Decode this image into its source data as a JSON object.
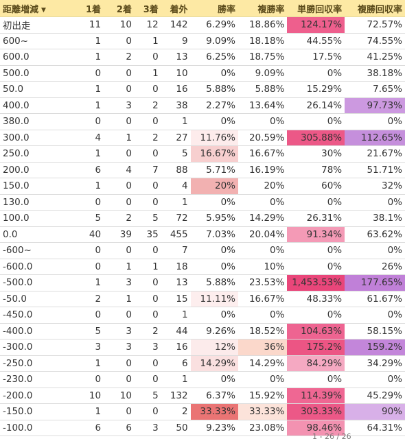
{
  "table": {
    "headers": [
      {
        "label": "距離増減",
        "sort_icon": "caret-down-icon"
      },
      {
        "label": "1着"
      },
      {
        "label": "2着"
      },
      {
        "label": "3着"
      },
      {
        "label": "着外"
      },
      {
        "label": "勝率"
      },
      {
        "label": "複勝率"
      },
      {
        "label": "単勝回収率"
      },
      {
        "label": "複勝回収率"
      }
    ],
    "rows": [
      {
        "cells": [
          "初出走",
          "11",
          "10",
          "12",
          "142",
          "6.29%",
          "18.86%",
          "124.17%",
          "72.57%"
        ],
        "bg": [
          null,
          null,
          null,
          null,
          null,
          null,
          null,
          "#ee5f8d",
          null
        ]
      },
      {
        "cells": [
          "600~",
          "1",
          "0",
          "1",
          "9",
          "9.09%",
          "18.18%",
          "44.55%",
          "74.55%"
        ],
        "bg": [
          null,
          null,
          null,
          null,
          null,
          null,
          null,
          null,
          null
        ]
      },
      {
        "cells": [
          "600.0",
          "1",
          "2",
          "0",
          "13",
          "6.25%",
          "18.75%",
          "17.5%",
          "41.25%"
        ],
        "bg": [
          null,
          null,
          null,
          null,
          null,
          null,
          null,
          null,
          null
        ]
      },
      {
        "cells": [
          "500.0",
          "0",
          "0",
          "1",
          "10",
          "0%",
          "9.09%",
          "0%",
          "38.18%"
        ],
        "bg": [
          null,
          null,
          null,
          null,
          null,
          null,
          null,
          null,
          null
        ]
      },
      {
        "cells": [
          "50.0",
          "1",
          "0",
          "0",
          "16",
          "5.88%",
          "5.88%",
          "15.29%",
          "7.65%"
        ],
        "bg": [
          null,
          null,
          null,
          null,
          null,
          null,
          null,
          null,
          null
        ]
      },
      {
        "cells": [
          "400.0",
          "1",
          "3",
          "2",
          "38",
          "2.27%",
          "13.64%",
          "26.14%",
          "97.73%"
        ],
        "bg": [
          null,
          null,
          null,
          null,
          null,
          null,
          null,
          null,
          "#cc99e0"
        ]
      },
      {
        "cells": [
          "380.0",
          "0",
          "0",
          "0",
          "1",
          "0%",
          "0%",
          "0%",
          "0%"
        ],
        "bg": [
          null,
          null,
          null,
          null,
          null,
          null,
          null,
          null,
          null
        ]
      },
      {
        "cells": [
          "300.0",
          "4",
          "1",
          "2",
          "27",
          "11.76%",
          "20.59%",
          "305.88%",
          "112.65%"
        ],
        "bg": [
          null,
          null,
          null,
          null,
          null,
          "#fdecec",
          null,
          "#ec5887",
          "#c58fdc"
        ]
      },
      {
        "cells": [
          "250.0",
          "1",
          "0",
          "0",
          "5",
          "16.67%",
          "16.67%",
          "30%",
          "21.67%"
        ],
        "bg": [
          null,
          null,
          null,
          null,
          null,
          "#f7cfcf",
          null,
          null,
          null
        ]
      },
      {
        "cells": [
          "200.0",
          "6",
          "4",
          "7",
          "88",
          "5.71%",
          "16.19%",
          "78%",
          "51.71%"
        ],
        "bg": [
          null,
          null,
          null,
          null,
          null,
          null,
          null,
          null,
          null
        ]
      },
      {
        "cells": [
          "150.0",
          "1",
          "0",
          "0",
          "4",
          "20%",
          "20%",
          "60%",
          "32%"
        ],
        "bg": [
          null,
          null,
          null,
          null,
          null,
          "#f2b1b1",
          null,
          null,
          null
        ]
      },
      {
        "cells": [
          "130.0",
          "0",
          "0",
          "0",
          "1",
          "0%",
          "0%",
          "0%",
          "0%"
        ],
        "bg": [
          null,
          null,
          null,
          null,
          null,
          null,
          null,
          null,
          null
        ]
      },
      {
        "cells": [
          "100.0",
          "5",
          "2",
          "5",
          "72",
          "5.95%",
          "14.29%",
          "26.31%",
          "38.1%"
        ],
        "bg": [
          null,
          null,
          null,
          null,
          null,
          null,
          null,
          null,
          null
        ]
      },
      {
        "cells": [
          "0.0",
          "40",
          "39",
          "35",
          "455",
          "7.03%",
          "20.04%",
          "91.34%",
          "63.62%"
        ],
        "bg": [
          null,
          null,
          null,
          null,
          null,
          null,
          null,
          "#f49ab6",
          null
        ]
      },
      {
        "cells": [
          "-600~",
          "0",
          "0",
          "0",
          "7",
          "0%",
          "0%",
          "0%",
          "0%"
        ],
        "bg": [
          null,
          null,
          null,
          null,
          null,
          null,
          null,
          null,
          null
        ]
      },
      {
        "cells": [
          "-600.0",
          "0",
          "1",
          "1",
          "18",
          "0%",
          "10%",
          "0%",
          "26%"
        ],
        "bg": [
          null,
          null,
          null,
          null,
          null,
          null,
          null,
          null,
          null
        ]
      },
      {
        "cells": [
          "-500.0",
          "1",
          "3",
          "0",
          "13",
          "5.88%",
          "23.53%",
          "1,453.53%",
          "177.65%"
        ],
        "bg": [
          null,
          null,
          null,
          null,
          null,
          null,
          null,
          "#e9467a",
          "#c080d8"
        ]
      },
      {
        "cells": [
          "-50.0",
          "2",
          "1",
          "0",
          "15",
          "11.11%",
          "16.67%",
          "48.33%",
          "61.67%"
        ],
        "bg": [
          null,
          null,
          null,
          null,
          null,
          "#fdeeee",
          null,
          null,
          null
        ]
      },
      {
        "cells": [
          "-450.0",
          "0",
          "0",
          "0",
          "1",
          "0%",
          "0%",
          "0%",
          "0%"
        ],
        "bg": [
          null,
          null,
          null,
          null,
          null,
          null,
          null,
          null,
          null
        ]
      },
      {
        "cells": [
          "-400.0",
          "5",
          "3",
          "2",
          "44",
          "9.26%",
          "18.52%",
          "104.63%",
          "58.15%"
        ],
        "bg": [
          null,
          null,
          null,
          null,
          null,
          null,
          null,
          "#ee6491",
          null
        ]
      },
      {
        "cells": [
          "-300.0",
          "3",
          "3",
          "3",
          "16",
          "12%",
          "36%",
          "175.2%",
          "159.2%"
        ],
        "bg": [
          null,
          null,
          null,
          null,
          null,
          "#fcebeb",
          "#fbd8cb",
          "#ec5584",
          "#c386da"
        ]
      },
      {
        "cells": [
          "-250.0",
          "1",
          "0",
          "0",
          "6",
          "14.29%",
          "14.29%",
          "84.29%",
          "34.29%"
        ],
        "bg": [
          null,
          null,
          null,
          null,
          null,
          "#fae0e0",
          null,
          "#f5a9c2",
          null
        ]
      },
      {
        "cells": [
          "-230.0",
          "0",
          "0",
          "0",
          "1",
          "0%",
          "0%",
          "0%",
          "0%"
        ],
        "bg": [
          null,
          null,
          null,
          null,
          null,
          null,
          null,
          null,
          null
        ]
      },
      {
        "cells": [
          "-200.0",
          "10",
          "10",
          "5",
          "132",
          "6.37%",
          "15.92%",
          "114.39%",
          "45.29%"
        ],
        "bg": [
          null,
          null,
          null,
          null,
          null,
          null,
          null,
          "#ef6793",
          null
        ]
      },
      {
        "cells": [
          "-150.0",
          "1",
          "0",
          "0",
          "2",
          "33.33%",
          "33.33%",
          "303.33%",
          "90%"
        ],
        "bg": [
          null,
          null,
          null,
          null,
          null,
          "#ea7474",
          "#fce3da",
          "#ec5887",
          "#d8b0e8"
        ]
      },
      {
        "cells": [
          "-100.0",
          "6",
          "6",
          "3",
          "50",
          "9.23%",
          "23.08%",
          "98.46%",
          "64.31%"
        ],
        "bg": [
          null,
          null,
          null,
          null,
          null,
          null,
          null,
          "#f392b1",
          null
        ]
      }
    ]
  },
  "pager": {
    "text": "1 - 26 / 26"
  }
}
